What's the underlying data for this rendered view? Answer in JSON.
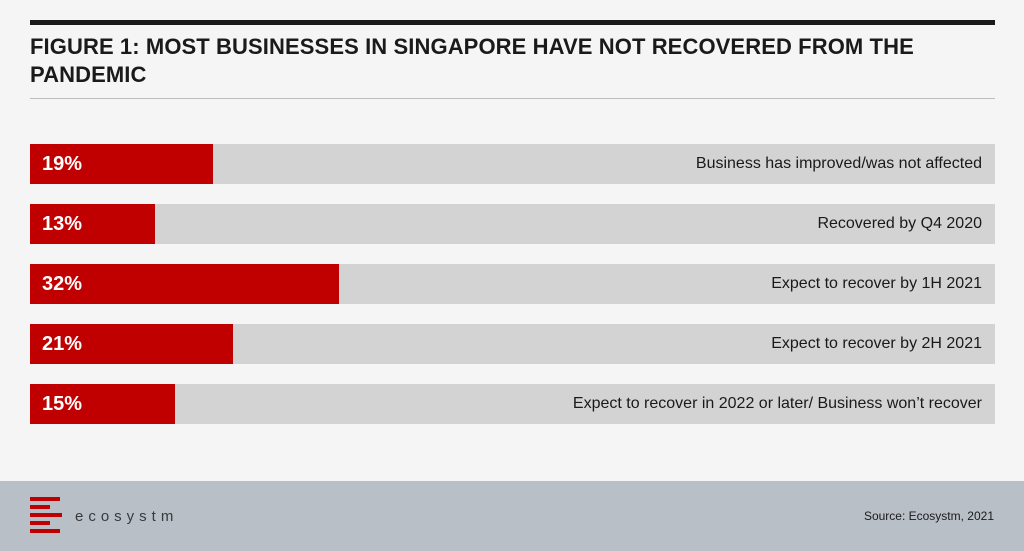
{
  "title": "FIGURE 1: MOST BUSINESSES IN SINGAPORE HAVE NOT RECOVERED FROM THE PANDEMIC",
  "colors": {
    "bar": "#c00000",
    "track": "#d3d3d3",
    "footer": "#b9bfc7"
  },
  "chart_data": {
    "type": "bar",
    "orientation": "horizontal",
    "title": "FIGURE 1: MOST BUSINESSES IN SINGAPORE HAVE NOT RECOVERED FROM THE PANDEMIC",
    "xlim": [
      0,
      100
    ],
    "categories": [
      "Business has improved/was not affected",
      "Recovered by Q4 2020",
      "Expect to recover by 1H 2021",
      "Expect to recover by 2H 2021",
      "Expect to recover in 2022 or later/ Business won’t recover"
    ],
    "values": [
      19,
      13,
      32,
      21,
      15
    ],
    "value_labels": [
      "19%",
      "13%",
      "32%",
      "21%",
      "15%"
    ]
  },
  "footer": {
    "brand": "ecosystm",
    "source": "Source: Ecosystm, 2021",
    "logo_icon": "ecosystm-logo-icon"
  }
}
